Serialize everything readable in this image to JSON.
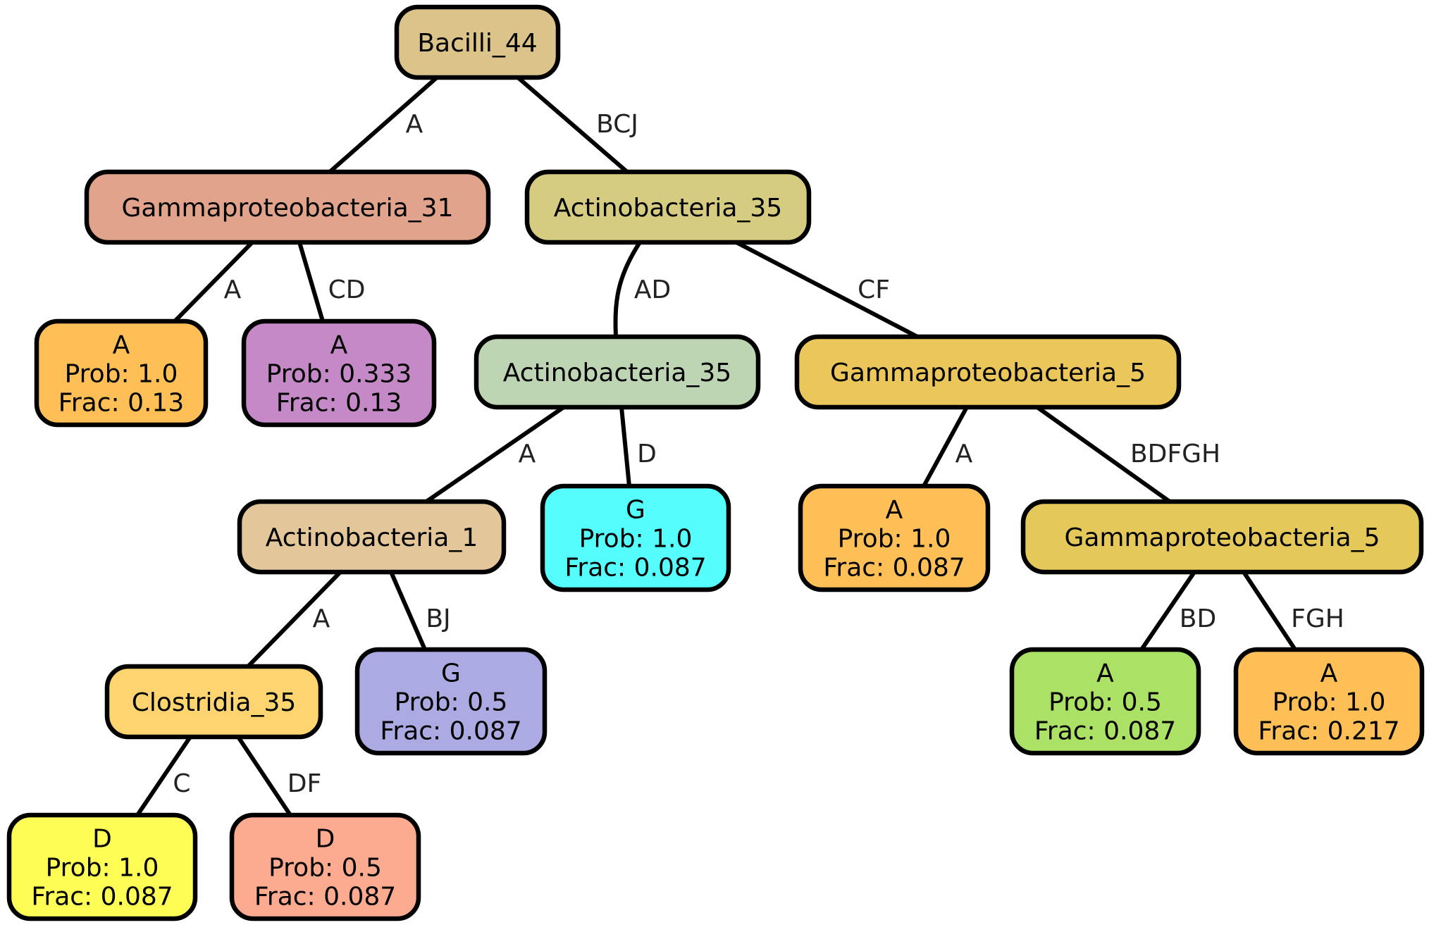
{
  "colors": {
    "n_root": "#dcc389",
    "n_g31": "#e2a38d",
    "n_leafA1": "#fdbf56",
    "n_leafA2": "#c489c6",
    "n_act35a": "#d6cc81",
    "n_act35b": "#bed5b3",
    "n_act1": "#e3c699",
    "n_clo35": "#fdd470",
    "n_leafD1": "#fdfd55",
    "n_leafD2": "#fdab90",
    "n_leafG1": "#abaae3",
    "n_leafG2": "#55fdfd",
    "n_g5a": "#ebc65a",
    "n_leafA3": "#fdbf56",
    "n_g5b": "#e5c85a",
    "n_leafA4": "#abe164",
    "n_leafA5": "#fdbf56"
  },
  "nodes": [
    {
      "id": "n_root",
      "lines": [
        "Bacilli_44"
      ]
    },
    {
      "id": "n_g31",
      "lines": [
        "Gammaproteobacteria_31"
      ]
    },
    {
      "id": "n_leafA1",
      "lines": [
        "A",
        "Prob: 1.0",
        "Frac: 0.13"
      ]
    },
    {
      "id": "n_leafA2",
      "lines": [
        "A",
        "Prob: 0.333",
        "Frac: 0.13"
      ]
    },
    {
      "id": "n_act35a",
      "lines": [
        "Actinobacteria_35"
      ]
    },
    {
      "id": "n_act35b",
      "lines": [
        "Actinobacteria_35"
      ]
    },
    {
      "id": "n_act1",
      "lines": [
        "Actinobacteria_1"
      ]
    },
    {
      "id": "n_clo35",
      "lines": [
        "Clostridia_35"
      ]
    },
    {
      "id": "n_leafD1",
      "lines": [
        "D",
        "Prob: 1.0",
        "Frac: 0.087"
      ]
    },
    {
      "id": "n_leafD2",
      "lines": [
        "D",
        "Prob: 0.5",
        "Frac: 0.087"
      ]
    },
    {
      "id": "n_leafG1",
      "lines": [
        "G",
        "Prob: 0.5",
        "Frac: 0.087"
      ]
    },
    {
      "id": "n_leafG2",
      "lines": [
        "G",
        "Prob: 1.0",
        "Frac: 0.087"
      ]
    },
    {
      "id": "n_g5a",
      "lines": [
        "Gammaproteobacteria_5"
      ]
    },
    {
      "id": "n_leafA3",
      "lines": [
        "A",
        "Prob: 1.0",
        "Frac: 0.087"
      ]
    },
    {
      "id": "n_g5b",
      "lines": [
        "Gammaproteobacteria_5"
      ]
    },
    {
      "id": "n_leafA4",
      "lines": [
        "A",
        "Prob: 0.5",
        "Frac: 0.087"
      ]
    },
    {
      "id": "n_leafA5",
      "lines": [
        "A",
        "Prob: 1.0",
        "Frac: 0.217"
      ]
    }
  ],
  "edges": [
    {
      "id": "e_root_g31",
      "from": "n_root",
      "to": "n_g31",
      "label": "A"
    },
    {
      "id": "e_root_act35a",
      "from": "n_root",
      "to": "n_act35a",
      "label": "BCJ"
    },
    {
      "id": "e_g31_leafA1",
      "from": "n_g31",
      "to": "n_leafA1",
      "label": "A"
    },
    {
      "id": "e_g31_leafA2",
      "from": "n_g31",
      "to": "n_leafA2",
      "label": "CD"
    },
    {
      "id": "e_act35a_act35b",
      "from": "n_act35a",
      "to": "n_act35b",
      "label": "AD"
    },
    {
      "id": "e_act35a_g5a",
      "from": "n_act35a",
      "to": "n_g5a",
      "label": "CF"
    },
    {
      "id": "e_act35b_act1",
      "from": "n_act35b",
      "to": "n_act1",
      "label": "A"
    },
    {
      "id": "e_act35b_leafG2",
      "from": "n_act35b",
      "to": "n_leafG2",
      "label": "D"
    },
    {
      "id": "e_act1_clo35",
      "from": "n_act1",
      "to": "n_clo35",
      "label": "A"
    },
    {
      "id": "e_act1_leafG1",
      "from": "n_act1",
      "to": "n_leafG1",
      "label": "BJ"
    },
    {
      "id": "e_clo35_leafD1",
      "from": "n_clo35",
      "to": "n_leafD1",
      "label": "C"
    },
    {
      "id": "e_clo35_leafD2",
      "from": "n_clo35",
      "to": "n_leafD2",
      "label": "DF"
    },
    {
      "id": "e_g5a_leafA3",
      "from": "n_g5a",
      "to": "n_leafA3",
      "label": "A"
    },
    {
      "id": "e_g5a_g5b",
      "from": "n_g5a",
      "to": "n_g5b",
      "label": "BDFGH"
    },
    {
      "id": "e_g5b_leafA4",
      "from": "n_g5b",
      "to": "n_leafA4",
      "label": "BD"
    },
    {
      "id": "e_g5b_leafA5",
      "from": "n_g5b",
      "to": "n_leafA5",
      "label": "FGH"
    }
  ]
}
